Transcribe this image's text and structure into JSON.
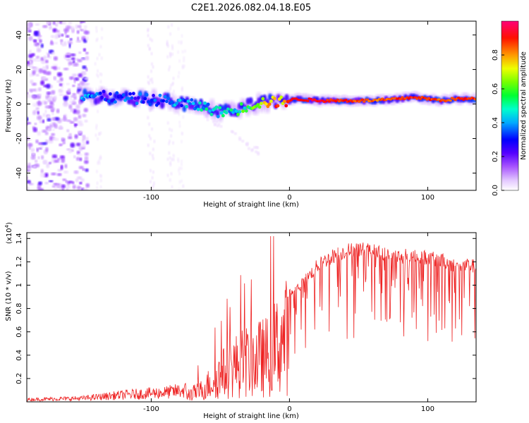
{
  "figure_title": "C2E1.2026.082.04.18.E05",
  "chart_data": [
    {
      "type": "heatmap",
      "title": "C2E1.2026.082.04.18.E05",
      "xlabel": "Height of straight line (km)",
      "ylabel": "Frequency (Hz)",
      "xlim": [
        -190,
        135
      ],
      "ylim": [
        -50,
        48
      ],
      "xticks": [
        -100,
        0,
        100
      ],
      "yticks": [
        -40,
        -20,
        0,
        20,
        40
      ],
      "colorbar": {
        "label": "Normalized spectral amplitude",
        "range": [
          0,
          1
        ],
        "ticks": [
          0.0,
          0.2,
          0.4,
          0.6,
          0.8
        ],
        "colormap": [
          "#ffffff",
          "#e8d0ff",
          "#b066ff",
          "#6600ff",
          "#0000ff",
          "#00ccff",
          "#00ff66",
          "#66ff00",
          "#ffff00",
          "#ff6600",
          "#ff0000",
          "#ff0066"
        ]
      },
      "ridge": {
        "description": "dominant frequency vs height",
        "x": [
          -150,
          -130,
          -110,
          -90,
          -75,
          -60,
          -50,
          -40,
          -30,
          -20,
          -10,
          0,
          5,
          20,
          40,
          60,
          80,
          90,
          100,
          110,
          120,
          135
        ],
        "y": [
          5,
          4,
          3,
          2,
          0,
          -2,
          -5,
          -4,
          -1,
          1,
          1,
          2,
          3,
          2,
          2,
          2,
          3,
          4,
          3,
          2,
          3,
          3
        ],
        "amplitude": [
          0.45,
          0.4,
          0.4,
          0.42,
          0.45,
          0.5,
          0.5,
          0.55,
          0.6,
          0.75,
          0.85,
          0.9,
          0.95,
          0.95,
          0.9,
          0.85,
          0.9,
          0.92,
          0.88,
          0.85,
          0.88,
          0.9
        ]
      },
      "noise_region": {
        "x_from": -190,
        "x_to": -150,
        "amplitude": 0.2
      }
    },
    {
      "type": "line",
      "xlabel": "Height of straight line (km)",
      "ylabel": "SNR (10 * v/v)",
      "y_scale_label": "(x10",
      "y_scale_exponent": "4",
      "xlim": [
        -190,
        135
      ],
      "ylim": [
        0,
        1.45
      ],
      "xticks": [
        -100,
        0,
        100
      ],
      "yticks": [
        0.2,
        0.4,
        0.6,
        0.8,
        1.0,
        1.2,
        1.4
      ],
      "series": [
        {
          "name": "SNR",
          "color": "#ee2222",
          "envelope_x": [
            -190,
            -150,
            -120,
            -90,
            -75,
            -65,
            -55,
            -45,
            -35,
            -25,
            -15,
            -5,
            0,
            10,
            20,
            30,
            40,
            50,
            60,
            70,
            80,
            90,
            100,
            110,
            120,
            135
          ],
          "envelope_y": [
            0.02,
            0.03,
            0.06,
            0.08,
            0.1,
            0.15,
            0.3,
            0.45,
            0.55,
            0.6,
            0.65,
            0.9,
            0.95,
            1.05,
            1.2,
            1.28,
            1.33,
            1.35,
            1.33,
            1.3,
            1.28,
            1.3,
            1.27,
            1.25,
            1.2,
            1.2
          ],
          "peak_max": 1.42
        }
      ]
    }
  ]
}
